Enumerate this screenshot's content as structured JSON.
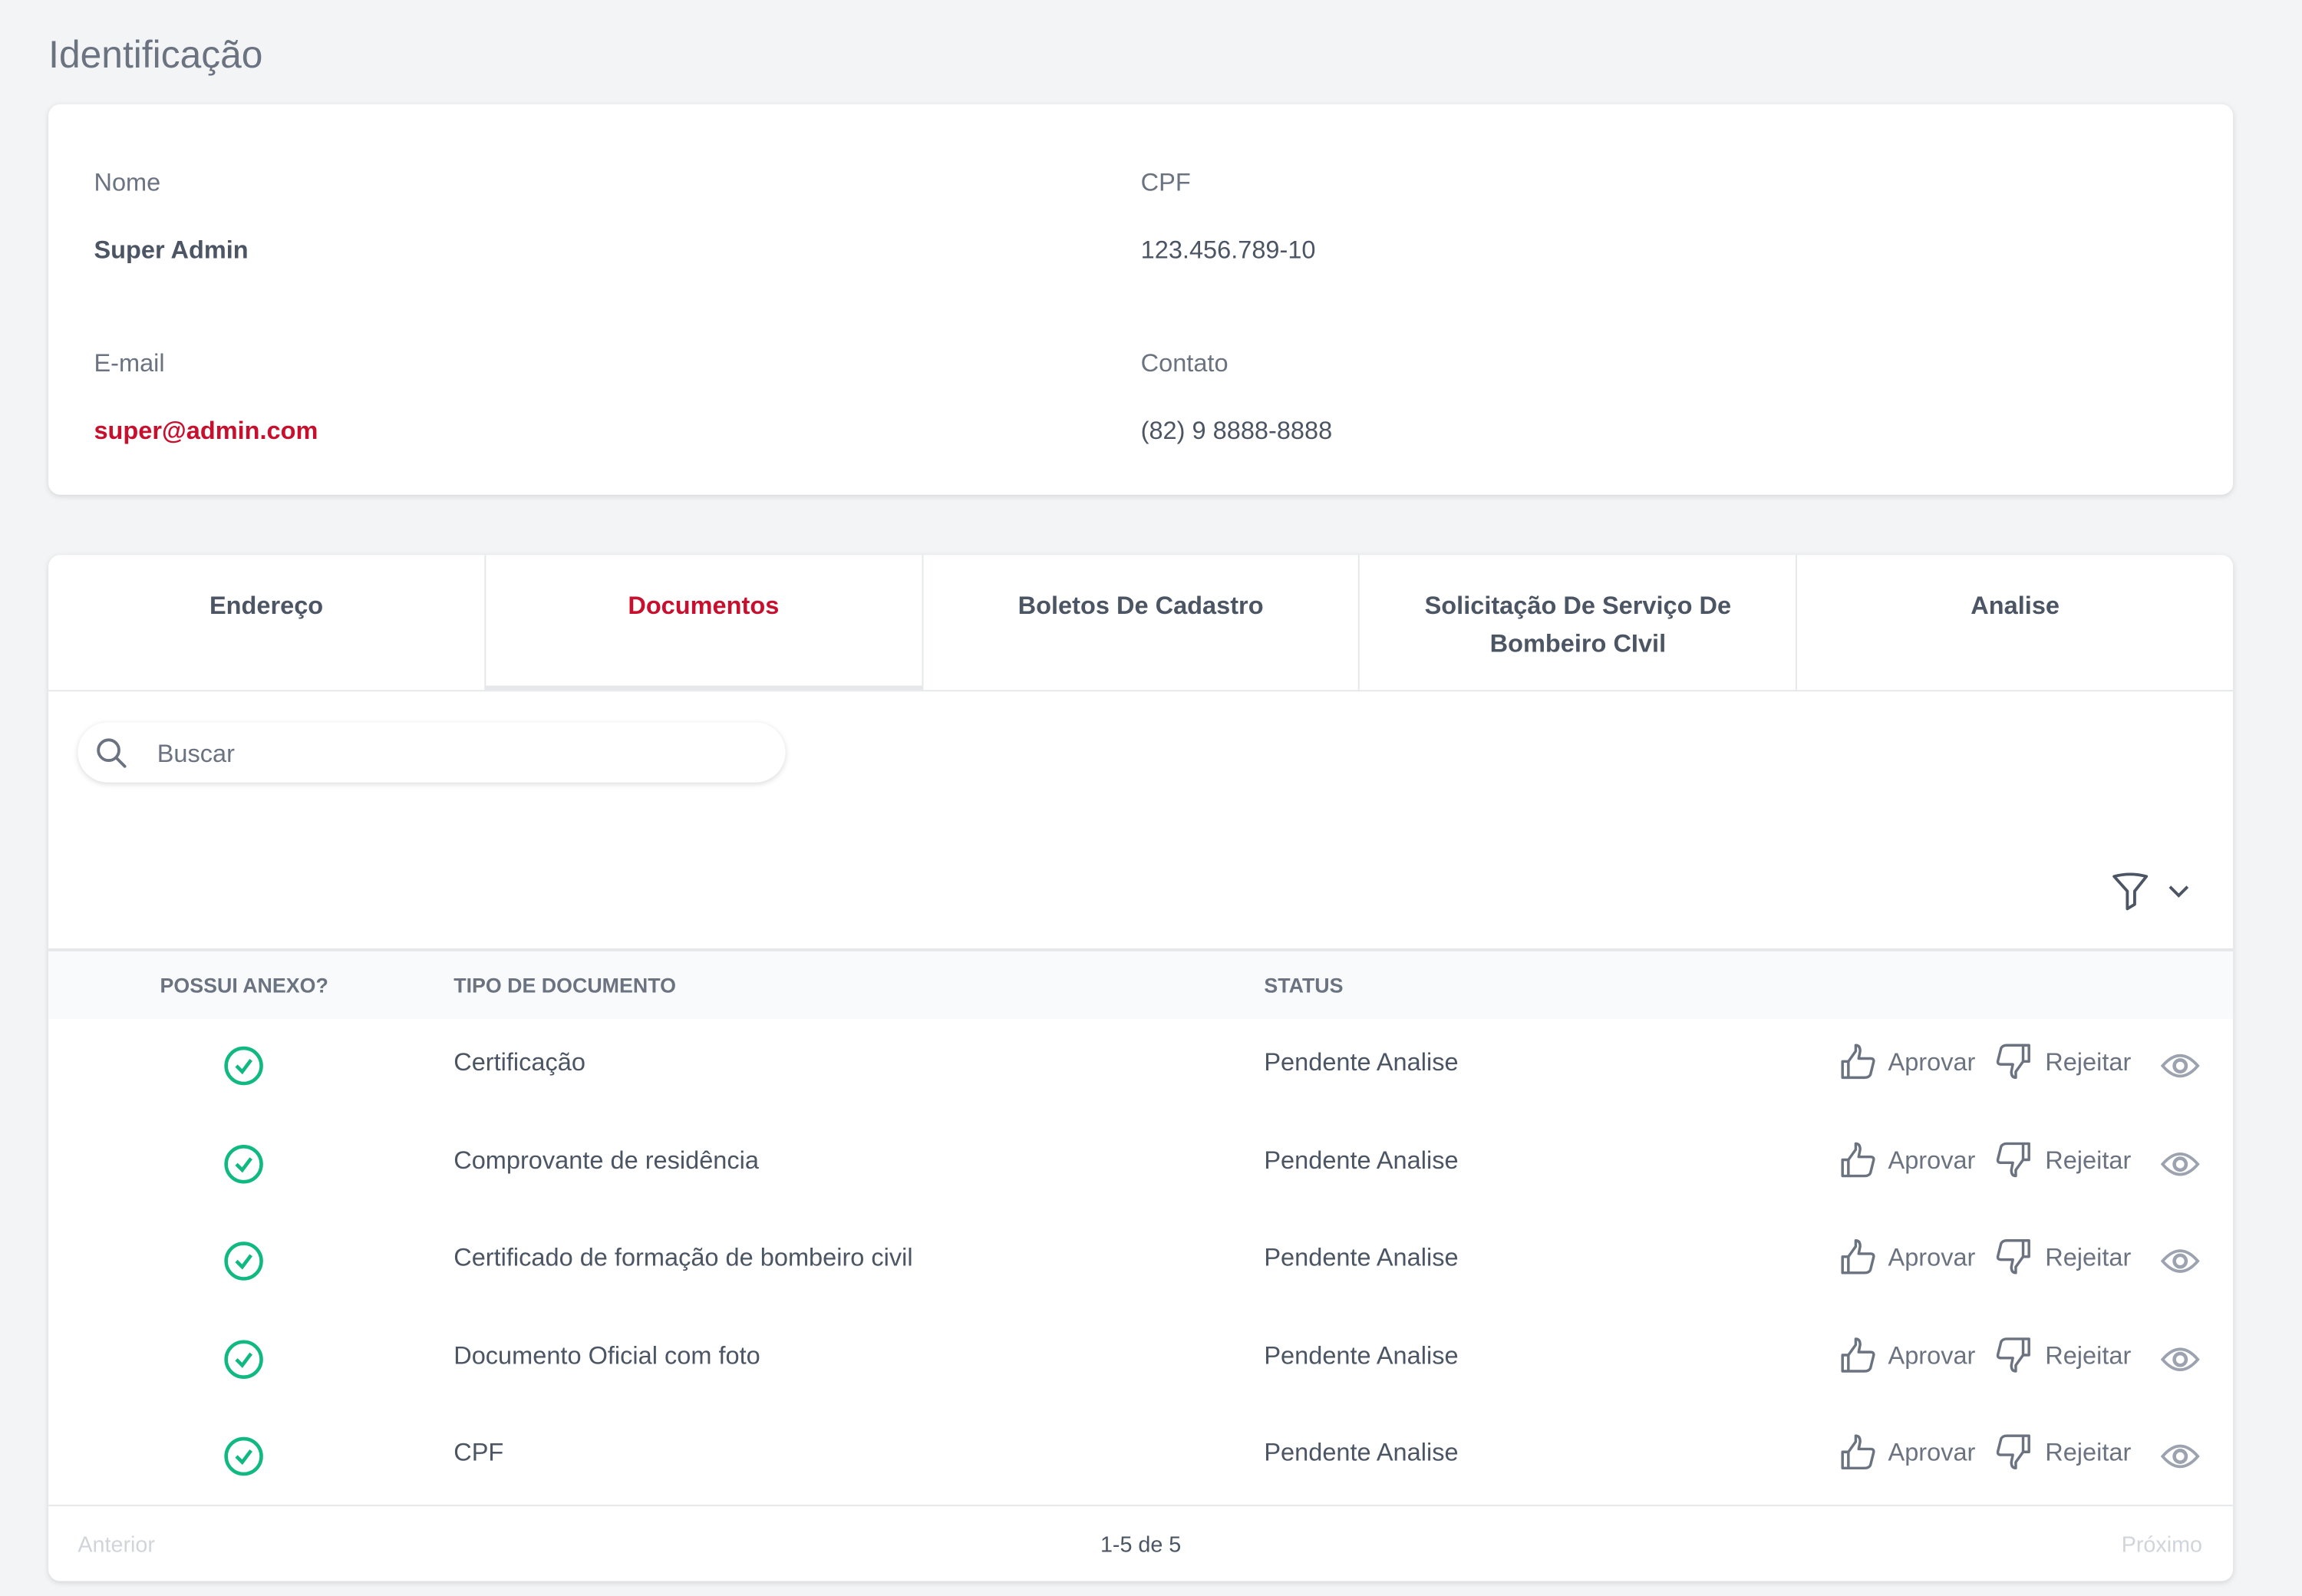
{
  "page_title": "Identificação",
  "identification": {
    "name_label": "Nome",
    "name_value": "Super Admin",
    "cpf_label": "CPF",
    "cpf_value": "123.456.789-10",
    "email_label": "E-mail",
    "email_value": "super@admin.com",
    "contact_label": "Contato",
    "contact_value": "(82) 9 8888-8888"
  },
  "tabs": [
    {
      "label": "Endereço",
      "active": false
    },
    {
      "label": "Documentos",
      "active": true
    },
    {
      "label": "Boletos De Cadastro",
      "active": false
    },
    {
      "label": "Solicitação De Serviço De Bombeiro CIvil",
      "active": false
    },
    {
      "label": "Analise",
      "active": false
    }
  ],
  "search": {
    "placeholder": "Buscar",
    "value": ""
  },
  "table": {
    "headers": [
      "POSSUI ANEXO?",
      "TIPO DE DOCUMENTO",
      "STATUS"
    ],
    "approve_label": "Aprovar",
    "reject_label": "Rejeitar",
    "rows": [
      {
        "has_attachment": true,
        "type": "Certificação",
        "status": "Pendente Analise"
      },
      {
        "has_attachment": true,
        "type": "Comprovante de residência",
        "status": "Pendente Analise"
      },
      {
        "has_attachment": true,
        "type": "Certificado de formação de bombeiro civil",
        "status": "Pendente Analise"
      },
      {
        "has_attachment": true,
        "type": "Documento Oficial com foto",
        "status": "Pendente Analise"
      },
      {
        "has_attachment": true,
        "type": "CPF",
        "status": "Pendente Analise"
      }
    ]
  },
  "pagination": {
    "prev": "Anterior",
    "info": "1-5 de 5",
    "next": "Próximo"
  },
  "colors": {
    "accent": "#c8102e",
    "success": "#10b981",
    "text": "#4b5563"
  }
}
